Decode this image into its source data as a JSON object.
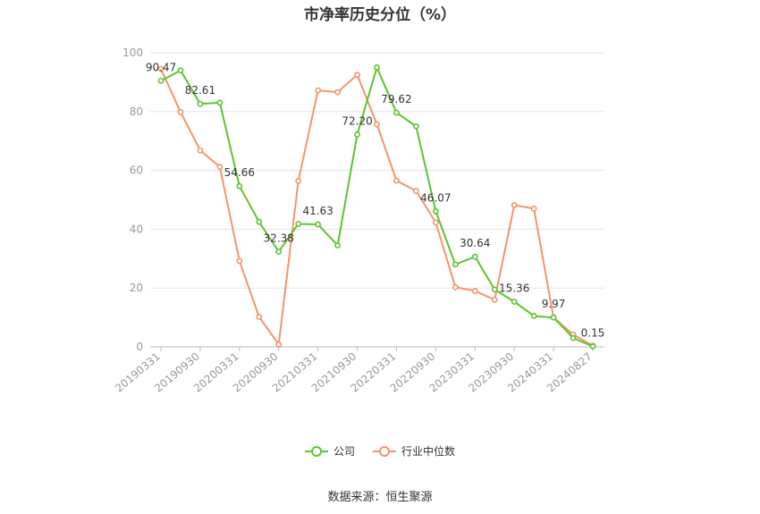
{
  "chart_data": {
    "type": "line",
    "title": "市净率历史分位（%）",
    "xlabel": "",
    "ylabel": "",
    "ylim": [
      0,
      100
    ],
    "yticks": [
      0,
      20,
      40,
      60,
      80,
      100
    ],
    "grid": true,
    "legend_position": "bottom",
    "x": [
      "20190331",
      "20190630",
      "20190930",
      "20191231",
      "20200331",
      "20200630",
      "20200930",
      "20201231",
      "20210331",
      "20210630",
      "20210930",
      "20211231",
      "20220331",
      "20220630",
      "20220930",
      "20221231",
      "20230331",
      "20230630",
      "20230930",
      "20231231",
      "20240331",
      "20240630",
      "20240827"
    ],
    "x_tick_labels": [
      "20190331",
      "20190930",
      "20200331",
      "20200930",
      "20210331",
      "20210930",
      "20220331",
      "20220930",
      "20230331",
      "20230930",
      "20240331",
      "20240827"
    ],
    "series": [
      {
        "name": "公司",
        "color": "#5dc42e",
        "values": [
          90.47,
          94.0,
          82.61,
          83.0,
          54.66,
          42.5,
          32.38,
          41.8,
          41.63,
          34.5,
          72.2,
          95.0,
          79.62,
          75.0,
          46.07,
          28.0,
          30.64,
          19.5,
          15.36,
          10.5,
          9.97,
          3.0,
          0.15
        ],
        "labels": {
          "0": "90.47",
          "2": "82.61",
          "4": "54.66",
          "6": "32.38",
          "8": "41.63",
          "10": "72.20",
          "12": "79.62",
          "14": "46.07",
          "16": "30.64",
          "18": "15.36",
          "20": "9.97",
          "22": "0.15"
        }
      },
      {
        "name": "行业中位数",
        "color": "#f5946a",
        "values": [
          94.5,
          79.8,
          66.8,
          61.2,
          29.2,
          10.2,
          0.8,
          56.4,
          87.2,
          86.6,
          92.5,
          75.7,
          56.5,
          53.0,
          42.3,
          20.3,
          19.0,
          16.0,
          48.2,
          47.0,
          10.0,
          4.2,
          0.4
        ]
      }
    ]
  },
  "footer": {
    "source": "数据来源：恒生聚源"
  }
}
